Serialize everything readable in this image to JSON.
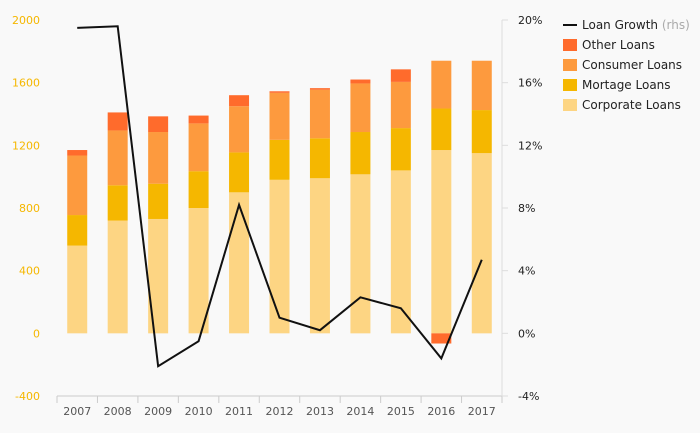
{
  "chart_data": {
    "type": "bar",
    "stacked": true,
    "categories": [
      "2007",
      "2008",
      "2009",
      "2010",
      "2011",
      "2012",
      "2013",
      "2014",
      "2015",
      "2016",
      "2017"
    ],
    "series": [
      {
        "name": "Corporate Loans",
        "color": "#fdd583",
        "values": [
          560,
          720,
          730,
          800,
          900,
          980,
          990,
          1015,
          1040,
          1170,
          1150
        ]
      },
      {
        "name": "Mortage Loans",
        "color": "#f5b700",
        "values": [
          195,
          225,
          225,
          235,
          255,
          255,
          255,
          270,
          270,
          265,
          275
        ]
      },
      {
        "name": "Consumer Loans",
        "color": "#fd9a3e",
        "values": [
          380,
          350,
          330,
          305,
          295,
          300,
          310,
          310,
          295,
          305,
          315
        ]
      },
      {
        "name": "Other Loans",
        "color": "#ff6b2c",
        "values": [
          35,
          115,
          100,
          50,
          70,
          10,
          10,
          25,
          80,
          -65,
          0
        ]
      }
    ],
    "line_series": {
      "name": "Loan Growth",
      "name_suffix": "(rhs)",
      "color": "#111111",
      "axis": "right",
      "values": [
        19.5,
        19.6,
        -2.1,
        -0.5,
        8.2,
        1.0,
        0.2,
        2.3,
        1.6,
        -1.6,
        4.7
      ]
    },
    "ylim": [
      -400,
      2000
    ],
    "yticks": [
      -400,
      0,
      400,
      800,
      1200,
      1600,
      2000
    ],
    "y2lim": [
      -4,
      20
    ],
    "y2ticks": [
      "-4%",
      "0%",
      "4%",
      "8%",
      "12%",
      "16%",
      "20%"
    ],
    "legend_position": "right",
    "grid": false
  },
  "legend": {
    "loan_growth": "Loan Growth",
    "loan_growth_suffix": "(rhs)",
    "other": "Other Loans",
    "consumer": "Consumer Loans",
    "mortage": "Mortage Loans",
    "corporate": "Corporate Loans"
  },
  "colors": {
    "corporate": "#fdd583",
    "mortage": "#f5b700",
    "consumer": "#fd9a3e",
    "other": "#ff6b2c",
    "line": "#111111",
    "left_ticks": "#f5b700"
  }
}
